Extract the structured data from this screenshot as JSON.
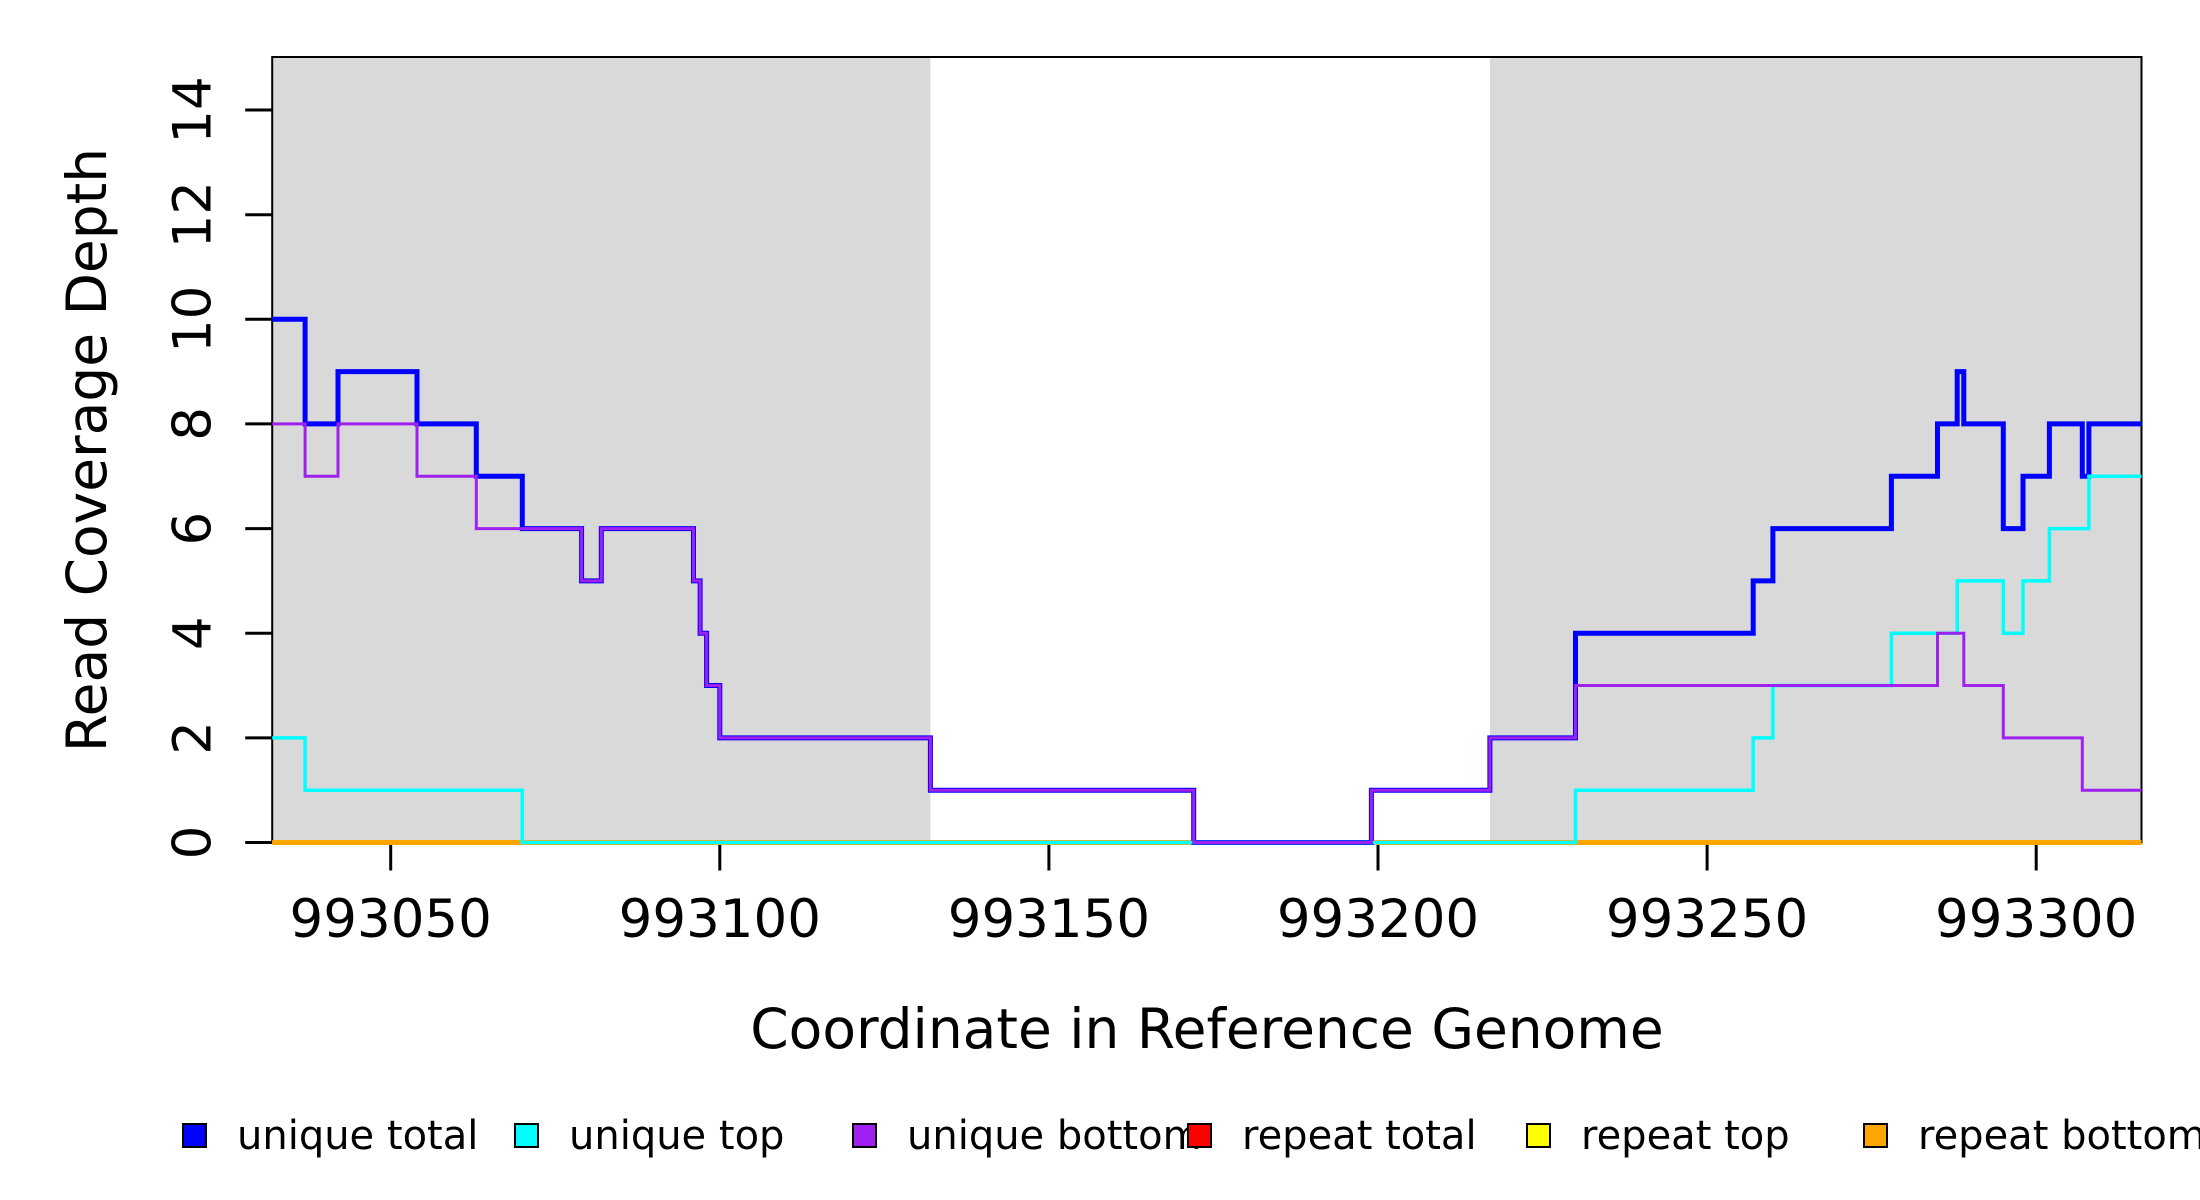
{
  "chart_data": {
    "type": "line",
    "step": true,
    "title": "",
    "xlabel": "Coordinate in Reference Genome",
    "ylabel": "Read Coverage Depth",
    "xlim": [
      993032,
      993316
    ],
    "ylim": [
      0,
      15
    ],
    "x_ticks": [
      993050,
      993100,
      993150,
      993200,
      993250,
      993300
    ],
    "x_tick_labels": [
      "993050",
      "993100",
      "993150",
      "993200",
      "993250",
      "993300"
    ],
    "y_ticks": [
      0,
      2,
      4,
      6,
      8,
      10,
      12,
      14
    ],
    "y_tick_labels": [
      "0",
      "2",
      "4",
      "6",
      "8",
      "10",
      "12",
      "14"
    ],
    "grid": false,
    "legend_position": "bottom",
    "background_color": "#ffffff",
    "shade_color": "#D9D9D9",
    "shaded_x_regions": [
      [
        993032,
        993132
      ],
      [
        993217,
        993316
      ]
    ],
    "x_end": 993316,
    "draw_order": [
      3,
      4,
      5,
      0,
      1,
      2
    ],
    "series": [
      {
        "name": "unique total",
        "color": "#0000FF",
        "line_width": 5,
        "steps": [
          [
            993032,
            10
          ],
          [
            993037,
            8
          ],
          [
            993042,
            9
          ],
          [
            993054,
            8
          ],
          [
            993063,
            7
          ],
          [
            993070,
            6
          ],
          [
            993079,
            5
          ],
          [
            993082,
            6
          ],
          [
            993096,
            5
          ],
          [
            993097,
            4
          ],
          [
            993098,
            3
          ],
          [
            993100,
            2
          ],
          [
            993132,
            1
          ],
          [
            993172,
            0
          ],
          [
            993199,
            1
          ],
          [
            993217,
            2
          ],
          [
            993230,
            4
          ],
          [
            993257,
            5
          ],
          [
            993260,
            6
          ],
          [
            993278,
            7
          ],
          [
            993285,
            8
          ],
          [
            993288,
            9
          ],
          [
            993289,
            8
          ],
          [
            993295,
            6
          ],
          [
            993298,
            7
          ],
          [
            993302,
            8
          ],
          [
            993307,
            7
          ],
          [
            993308,
            8
          ]
        ]
      },
      {
        "name": "unique top",
        "color": "#00FFFF",
        "line_width": 3.5,
        "steps": [
          [
            993032,
            2
          ],
          [
            993037,
            1
          ],
          [
            993070,
            0
          ],
          [
            993230,
            1
          ],
          [
            993257,
            2
          ],
          [
            993260,
            3
          ],
          [
            993278,
            4
          ],
          [
            993288,
            5
          ],
          [
            993295,
            4
          ],
          [
            993298,
            5
          ],
          [
            993302,
            6
          ],
          [
            993308,
            7
          ]
        ]
      },
      {
        "name": "unique bottom",
        "color": "#A020F0",
        "line_width": 3,
        "steps": [
          [
            993032,
            8
          ],
          [
            993037,
            7
          ],
          [
            993042,
            8
          ],
          [
            993054,
            7
          ],
          [
            993063,
            6
          ],
          [
            993079,
            5
          ],
          [
            993082,
            6
          ],
          [
            993096,
            5
          ],
          [
            993097,
            4
          ],
          [
            993098,
            3
          ],
          [
            993100,
            2
          ],
          [
            993132,
            1
          ],
          [
            993172,
            0
          ],
          [
            993199,
            1
          ],
          [
            993217,
            2
          ],
          [
            993230,
            3
          ],
          [
            993285,
            4
          ],
          [
            993289,
            3
          ],
          [
            993295,
            2
          ],
          [
            993307,
            1
          ]
        ]
      },
      {
        "name": "repeat total",
        "color": "#FF0000",
        "line_width": 3,
        "steps": [
          [
            993032,
            0
          ]
        ]
      },
      {
        "name": "repeat top",
        "color": "#FFFF00",
        "line_width": 3,
        "steps": [
          [
            993032,
            0
          ]
        ]
      },
      {
        "name": "repeat bottom",
        "color": "#FFA500",
        "line_width": 5,
        "steps": [
          [
            993032,
            0
          ]
        ]
      }
    ]
  }
}
